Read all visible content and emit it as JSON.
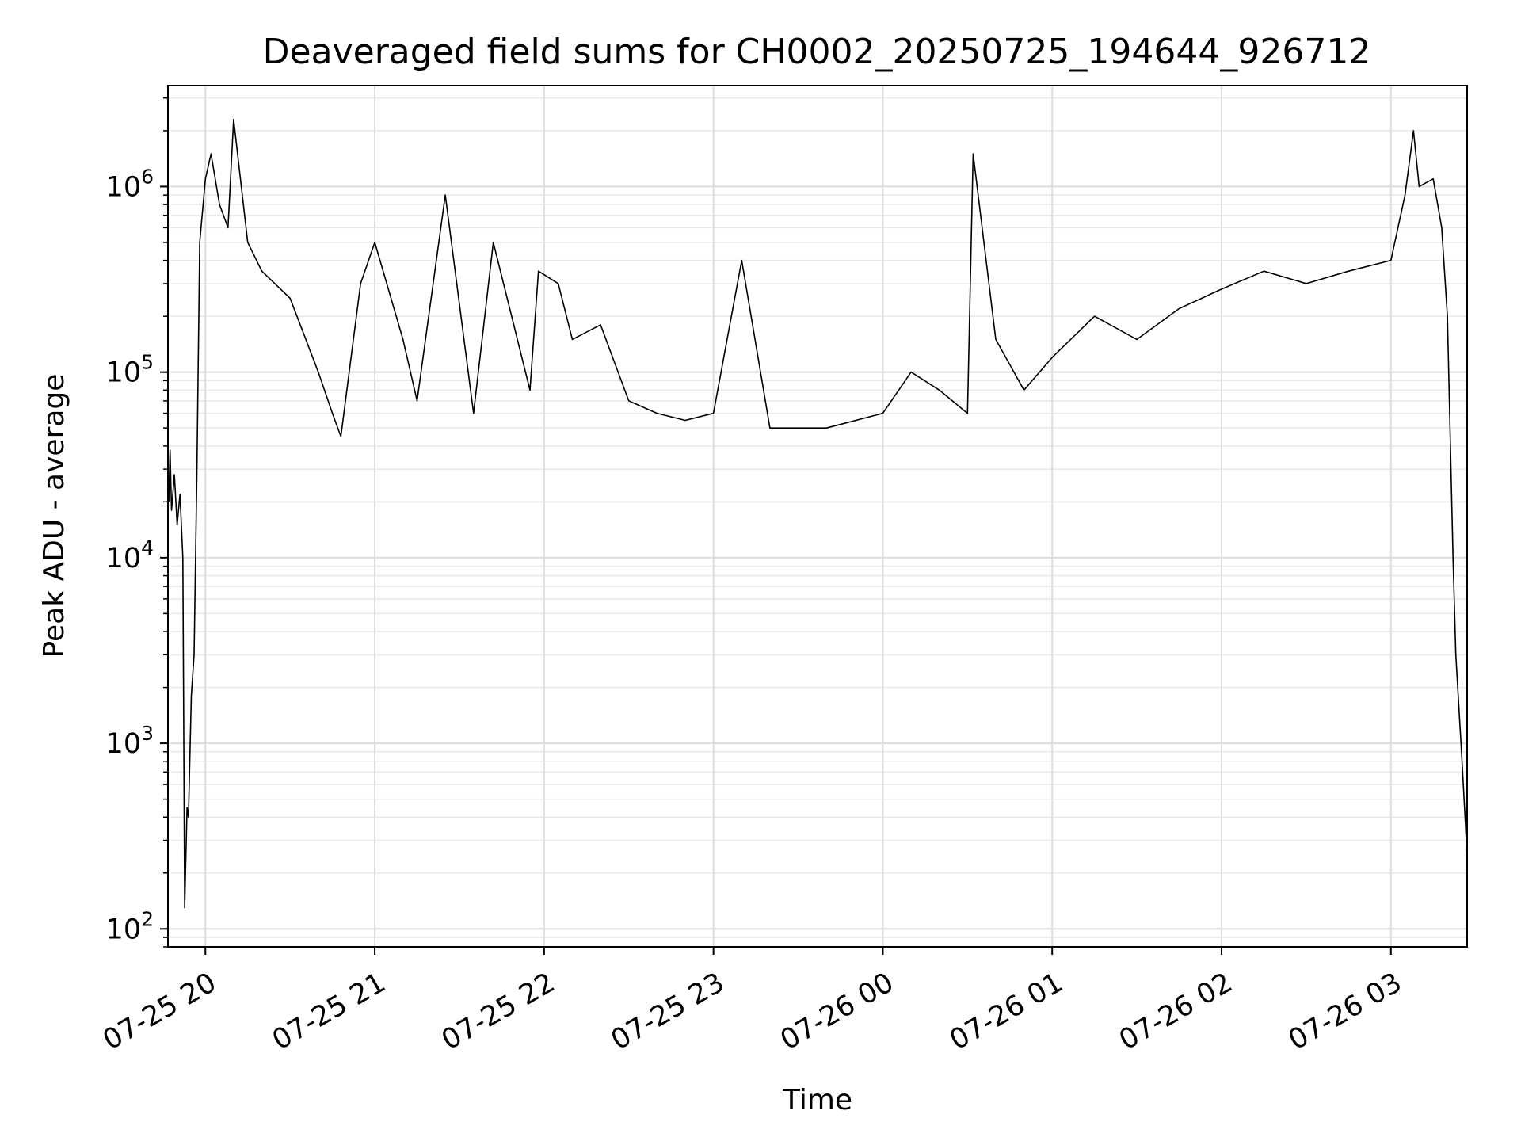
{
  "chart_data": {
    "type": "line",
    "title": "Deaveraged field sums for CH0002_20250725_194644_926712",
    "xlabel": "Time",
    "ylabel": "Peak ADU - average",
    "yscale": "log",
    "ylim": [
      80,
      3500000
    ],
    "xlim": [
      "2025-07-25 19:46:44",
      "2025-07-26 03:27:00"
    ],
    "grid": true,
    "x_ticks": [
      {
        "value": "2025-07-25 20:00",
        "label": "07-25 20"
      },
      {
        "value": "2025-07-25 21:00",
        "label": "07-25 21"
      },
      {
        "value": "2025-07-25 22:00",
        "label": "07-25 22"
      },
      {
        "value": "2025-07-25 23:00",
        "label": "07-25 23"
      },
      {
        "value": "2025-07-26 00:00",
        "label": "07-26 00"
      },
      {
        "value": "2025-07-26 01:00",
        "label": "07-26 01"
      },
      {
        "value": "2025-07-26 02:00",
        "label": "07-26 02"
      },
      {
        "value": "2025-07-26 03:00",
        "label": "07-26 03"
      }
    ],
    "y_ticks": [
      {
        "value": 100,
        "base": "10",
        "exp": "2"
      },
      {
        "value": 1000,
        "base": "10",
        "exp": "3"
      },
      {
        "value": 10000,
        "base": "10",
        "exp": "4"
      },
      {
        "value": 100000,
        "base": "10",
        "exp": "5"
      },
      {
        "value": 1000000,
        "base": "10",
        "exp": "6"
      }
    ],
    "series": [
      {
        "line_color": "#000000",
        "points": [
          [
            "2025-07-25 19:47",
            20000
          ],
          [
            "2025-07-25 19:47:30",
            38000
          ],
          [
            "2025-07-25 19:48",
            18000
          ],
          [
            "2025-07-25 19:49",
            28000
          ],
          [
            "2025-07-25 19:50",
            15000
          ],
          [
            "2025-07-25 19:51",
            22000
          ],
          [
            "2025-07-25 19:52",
            10000
          ],
          [
            "2025-07-25 19:52:40",
            130
          ],
          [
            "2025-07-25 19:53:30",
            450
          ],
          [
            "2025-07-25 19:54",
            400
          ],
          [
            "2025-07-25 19:55",
            1800
          ],
          [
            "2025-07-25 19:56",
            3000
          ],
          [
            "2025-07-25 19:57",
            30000
          ],
          [
            "2025-07-25 19:58",
            500000
          ],
          [
            "2025-07-25 20:00",
            1100000
          ],
          [
            "2025-07-25 20:02",
            1500000
          ],
          [
            "2025-07-25 20:05",
            800000
          ],
          [
            "2025-07-25 20:08",
            600000
          ],
          [
            "2025-07-25 20:10",
            2300000
          ],
          [
            "2025-07-25 20:15",
            500000
          ],
          [
            "2025-07-25 20:20",
            350000
          ],
          [
            "2025-07-25 20:30",
            250000
          ],
          [
            "2025-07-25 20:40",
            100000
          ],
          [
            "2025-07-25 20:45",
            60000
          ],
          [
            "2025-07-25 20:48",
            45000
          ],
          [
            "2025-07-25 20:55",
            300000
          ],
          [
            "2025-07-25 21:00",
            500000
          ],
          [
            "2025-07-25 21:10",
            150000
          ],
          [
            "2025-07-25 21:15",
            70000
          ],
          [
            "2025-07-25 21:25",
            900000
          ],
          [
            "2025-07-25 21:35",
            60000
          ],
          [
            "2025-07-25 21:42",
            500000
          ],
          [
            "2025-07-25 21:55",
            80000
          ],
          [
            "2025-07-25 21:58",
            350000
          ],
          [
            "2025-07-25 22:05",
            300000
          ],
          [
            "2025-07-25 22:10",
            150000
          ],
          [
            "2025-07-25 22:20",
            180000
          ],
          [
            "2025-07-25 22:30",
            70000
          ],
          [
            "2025-07-25 22:40",
            60000
          ],
          [
            "2025-07-25 22:50",
            55000
          ],
          [
            "2025-07-25 23:00",
            60000
          ],
          [
            "2025-07-25 23:10",
            400000
          ],
          [
            "2025-07-25 23:20",
            50000
          ],
          [
            "2025-07-25 23:40",
            50000
          ],
          [
            "2025-07-26 00:00",
            60000
          ],
          [
            "2025-07-26 00:10",
            100000
          ],
          [
            "2025-07-26 00:20",
            80000
          ],
          [
            "2025-07-26 00:30",
            60000
          ],
          [
            "2025-07-26 00:32",
            1500000
          ],
          [
            "2025-07-26 00:40",
            150000
          ],
          [
            "2025-07-26 00:50",
            80000
          ],
          [
            "2025-07-26 01:00",
            120000
          ],
          [
            "2025-07-26 01:15",
            200000
          ],
          [
            "2025-07-26 01:30",
            150000
          ],
          [
            "2025-07-26 01:45",
            220000
          ],
          [
            "2025-07-26 02:00",
            280000
          ],
          [
            "2025-07-26 02:15",
            350000
          ],
          [
            "2025-07-26 02:30",
            300000
          ],
          [
            "2025-07-26 02:45",
            350000
          ],
          [
            "2025-07-26 03:00",
            400000
          ],
          [
            "2025-07-26 03:05",
            900000
          ],
          [
            "2025-07-26 03:08",
            2000000
          ],
          [
            "2025-07-26 03:10",
            1000000
          ],
          [
            "2025-07-26 03:15",
            1100000
          ],
          [
            "2025-07-26 03:18",
            600000
          ],
          [
            "2025-07-26 03:20",
            200000
          ],
          [
            "2025-07-26 03:22",
            10000
          ],
          [
            "2025-07-26 03:23",
            3000
          ],
          [
            "2025-07-26 03:25",
            900
          ],
          [
            "2025-07-26 03:27",
            250
          ]
        ]
      }
    ]
  }
}
